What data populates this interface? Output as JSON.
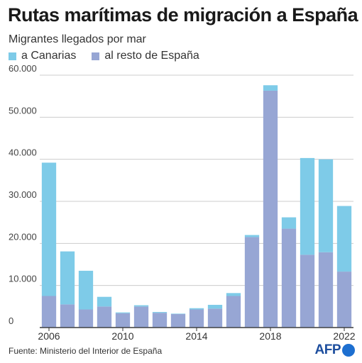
{
  "header": {
    "title": "Rutas marítimas de migración a España",
    "subtitle": "Migrantes llegados por mar"
  },
  "legend": {
    "items": [
      {
        "label": "a Canarias",
        "color": "#7ecbe8"
      },
      {
        "label": "al resto de España",
        "color": "#97a6d4"
      }
    ]
  },
  "footer": {
    "source": "Fuente: Ministerio del Interior de España",
    "logo": "AFP"
  },
  "chart_data": {
    "type": "bar",
    "stacked": true,
    "categories": [
      2006,
      2007,
      2008,
      2009,
      2010,
      2011,
      2012,
      2013,
      2014,
      2015,
      2016,
      2017,
      2018,
      2019,
      2020,
      2021,
      2022
    ],
    "series": [
      {
        "name": "al resto de España",
        "color": "#97a6d4",
        "values": [
          7500,
          5500,
          4300,
          5000,
          3400,
          5000,
          3500,
          3200,
          4300,
          4500,
          7500,
          21500,
          56300,
          23500,
          17300,
          17900,
          13300
        ]
      },
      {
        "name": "a Canarias",
        "color": "#7ecbe8",
        "values": [
          31700,
          12600,
          9200,
          2300,
          200,
          300,
          200,
          100,
          300,
          900,
          700,
          500,
          1300,
          2700,
          23000,
          22100,
          15600
        ]
      }
    ],
    "xtick_labels": [
      "2006",
      "2010",
      "2014",
      "2018",
      "2022"
    ],
    "ytick_labels": [
      "0",
      "10.000",
      "20.000",
      "30.000",
      "40.000",
      "50.000",
      "60.000"
    ],
    "ylim": [
      0,
      60000
    ],
    "grid": true
  }
}
